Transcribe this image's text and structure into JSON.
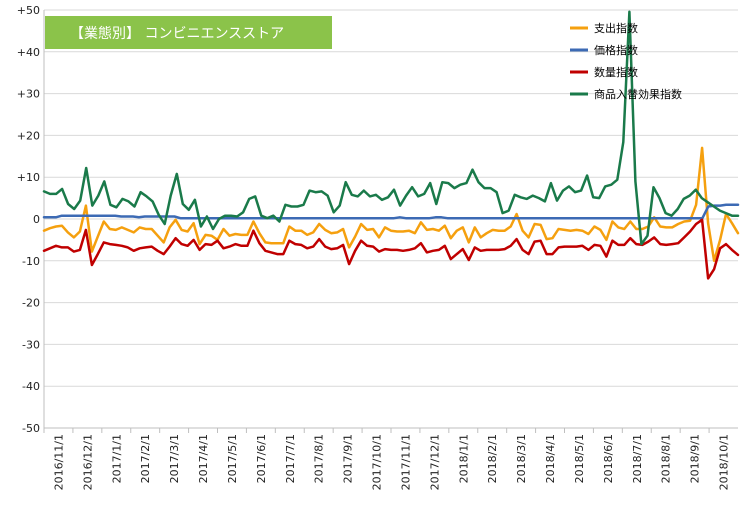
{
  "chart_data": {
    "type": "line",
    "title": "【業態別】 コンビニエンスストア",
    "xlabel": "",
    "ylabel": "",
    "ylim": [
      -50,
      50
    ],
    "yticks": [
      "+50",
      "+40",
      "+30",
      "+20",
      "+10",
      "0",
      "-10",
      "-20",
      "-30",
      "-40",
      "-50"
    ],
    "ytick_values": [
      50,
      40,
      30,
      20,
      10,
      0,
      -10,
      -20,
      -30,
      -40,
      -50
    ],
    "xticks": [
      "2016/11/1",
      "2016/12/1",
      "2017/1/1",
      "2017/2/1",
      "2017/3/1",
      "2017/4/1",
      "2017/5/1",
      "2017/6/1",
      "2017/7/1",
      "2017/8/1",
      "2017/9/1",
      "2017/10/1",
      "2017/11/1",
      "2017/12/1",
      "2018/1/1",
      "2018/2/1",
      "2018/3/1",
      "2018/4/1",
      "2018/5/1",
      "2018/6/1",
      "2018/7/1",
      "2018/8/1",
      "2018/9/1",
      "2018/10/1"
    ],
    "grid": "horizontal",
    "legend_position": "top-right",
    "x_start": "2016/11/1",
    "x_end": "2018/10/31",
    "series": [
      {
        "name": "支出指数",
        "color": "#f5a00f",
        "values": [
          -2.8,
          -2.2,
          -1.8,
          -1.6,
          -3.2,
          -4.4,
          -3.0,
          3.2,
          -7.8,
          -4.2,
          -0.6,
          -2.4,
          -2.6,
          -2.0,
          -2.6,
          -3.2,
          -2.0,
          -2.4,
          -2.4,
          -4.0,
          -5.6,
          -2.0,
          -0.2,
          -2.6,
          -3.0,
          -1.0,
          -6.0,
          -3.8,
          -4.0,
          -5.0,
          -2.4,
          -4.0,
          -3.6,
          -3.8,
          -3.8,
          -0.6,
          -3.4,
          -5.6,
          -5.8,
          -5.8,
          -5.8,
          -1.8,
          -2.8,
          -2.8,
          -3.8,
          -3.2,
          -1.2,
          -2.6,
          -3.4,
          -3.2,
          -2.4,
          -6.8,
          -4.2,
          -1.2,
          -2.6,
          -2.4,
          -4.4,
          -2.0,
          -2.8,
          -3.0,
          -3.0,
          -2.8,
          -3.4,
          -0.8,
          -2.6,
          -2.4,
          -2.8,
          -1.6,
          -4.6,
          -2.8,
          -2.0,
          -5.6,
          -2.0,
          -4.4,
          -3.4,
          -2.6,
          -2.8,
          -2.8,
          -1.8,
          1.2,
          -2.8,
          -4.4,
          -1.2,
          -1.4,
          -4.8,
          -4.6,
          -2.4,
          -2.6,
          -2.8,
          -2.6,
          -2.8,
          -3.6,
          -1.8,
          -2.6,
          -5.0,
          -0.6,
          -2.0,
          -2.4,
          -0.6,
          -2.4,
          -2.4,
          -1.8,
          0.4,
          -1.8,
          -2.0,
          -2.0,
          -1.2,
          -0.6,
          -0.4,
          3.4,
          17.0,
          -1.0,
          -10.0,
          -5.0,
          1.2,
          -1.0,
          -3.4
        ]
      },
      {
        "name": "価格指数",
        "color": "#3c6ab4",
        "values": [
          0.4,
          0.4,
          0.4,
          0.8,
          0.8,
          0.8,
          0.8,
          0.8,
          0.8,
          0.8,
          0.8,
          0.8,
          0.8,
          0.6,
          0.6,
          0.6,
          0.4,
          0.6,
          0.6,
          0.6,
          0.6,
          0.6,
          0.6,
          0.2,
          0.2,
          0.2,
          0.2,
          0.2,
          0.2,
          0.2,
          0.2,
          0.2,
          0.2,
          0.2,
          0.2,
          0.2,
          0.2,
          0.2,
          0.2,
          0.2,
          0.2,
          0.2,
          0.2,
          0.2,
          0.2,
          0.2,
          0.2,
          0.2,
          0.2,
          0.2,
          0.2,
          0.2,
          0.2,
          0.2,
          0.2,
          0.2,
          0.2,
          0.2,
          0.2,
          0.2,
          0.4,
          0.2,
          0.2,
          0.2,
          0.2,
          0.2,
          0.4,
          0.4,
          0.2,
          0.2,
          0.2,
          0.2,
          0.2,
          0.2,
          0.2,
          0.2,
          0.2,
          0.2,
          0.2,
          0.2,
          0.2,
          0.2,
          0.2,
          0.2,
          0.2,
          0.2,
          0.2,
          0.2,
          0.2,
          0.2,
          0.2,
          0.2,
          0.2,
          0.2,
          0.2,
          0.2,
          0.2,
          0.2,
          0.2,
          0.2,
          0.2,
          0.2,
          0.2,
          0.2,
          0.2,
          0.2,
          0.2,
          0.2,
          0.2,
          0.2,
          0.2,
          0.2,
          3.0,
          3.2,
          3.2,
          3.4,
          3.4,
          3.4
        ]
      },
      {
        "name": "数量指数",
        "color": "#c00000",
        "values": [
          -7.6,
          -7.0,
          -6.4,
          -6.8,
          -6.8,
          -7.8,
          -7.4,
          -2.6,
          -11.0,
          -8.4,
          -5.6,
          -6.0,
          -6.2,
          -6.4,
          -6.8,
          -7.6,
          -7.0,
          -6.8,
          -6.6,
          -7.6,
          -8.4,
          -6.6,
          -4.6,
          -6.0,
          -6.4,
          -5.0,
          -7.4,
          -6.0,
          -6.2,
          -5.2,
          -7.0,
          -6.6,
          -6.0,
          -6.4,
          -6.4,
          -2.8,
          -5.8,
          -7.6,
          -8.0,
          -8.4,
          -8.4,
          -5.2,
          -6.0,
          -6.2,
          -7.0,
          -6.6,
          -4.8,
          -6.6,
          -7.2,
          -7.0,
          -6.2,
          -10.8,
          -7.6,
          -5.2,
          -6.4,
          -6.6,
          -7.8,
          -7.2,
          -7.4,
          -7.4,
          -7.6,
          -7.4,
          -7.0,
          -5.8,
          -8.0,
          -7.6,
          -7.4,
          -6.4,
          -9.6,
          -8.4,
          -7.2,
          -9.8,
          -6.8,
          -7.6,
          -7.4,
          -7.4,
          -7.4,
          -7.2,
          -6.4,
          -4.8,
          -7.4,
          -8.4,
          -5.4,
          -5.2,
          -8.4,
          -8.4,
          -6.8,
          -6.6,
          -6.6,
          -6.6,
          -6.4,
          -7.4,
          -6.2,
          -6.4,
          -9.0,
          -5.2,
          -6.2,
          -6.2,
          -4.6,
          -6.0,
          -6.2,
          -5.4,
          -4.4,
          -6.0,
          -6.2,
          -6.0,
          -5.8,
          -4.4,
          -3.0,
          -1.2,
          -0.2,
          -14.2,
          -12.0,
          -7.0,
          -6.0,
          -7.4,
          -8.6
        ]
      },
      {
        "name": "商品入替効果指数",
        "color": "#1a7a4a",
        "values": [
          6.6,
          6.0,
          6.0,
          7.2,
          3.6,
          2.4,
          4.4,
          12.2,
          3.2,
          5.6,
          9.0,
          3.4,
          2.8,
          4.8,
          4.2,
          3.0,
          6.4,
          5.4,
          4.2,
          1.0,
          -1.2,
          5.6,
          10.8,
          3.6,
          2.2,
          4.6,
          -1.8,
          0.6,
          -2.4,
          0.0,
          0.8,
          0.8,
          0.6,
          1.6,
          4.8,
          5.4,
          0.8,
          0.2,
          0.8,
          -0.6,
          3.4,
          3.0,
          3.0,
          3.4,
          6.8,
          6.4,
          6.6,
          5.6,
          1.6,
          3.2,
          8.8,
          5.8,
          5.4,
          6.8,
          5.4,
          5.8,
          4.6,
          5.2,
          7.0,
          3.2,
          5.6,
          7.6,
          5.4,
          6.0,
          8.6,
          3.6,
          8.8,
          8.6,
          7.4,
          8.2,
          8.6,
          11.8,
          8.8,
          7.4,
          7.4,
          6.4,
          1.4,
          2.0,
          5.8,
          5.2,
          4.8,
          5.6,
          5.0,
          4.2,
          8.6,
          4.4,
          6.8,
          7.8,
          6.4,
          6.8,
          10.4,
          5.2,
          5.0,
          7.8,
          8.2,
          9.4,
          18.4,
          49.6,
          9.0,
          -6.0,
          -4.0,
          7.6,
          5.0,
          1.4,
          0.8,
          2.4,
          4.8,
          5.6,
          7.0,
          5.0,
          4.0,
          3.0,
          2.0,
          1.4,
          0.8,
          0.8
        ]
      }
    ]
  }
}
